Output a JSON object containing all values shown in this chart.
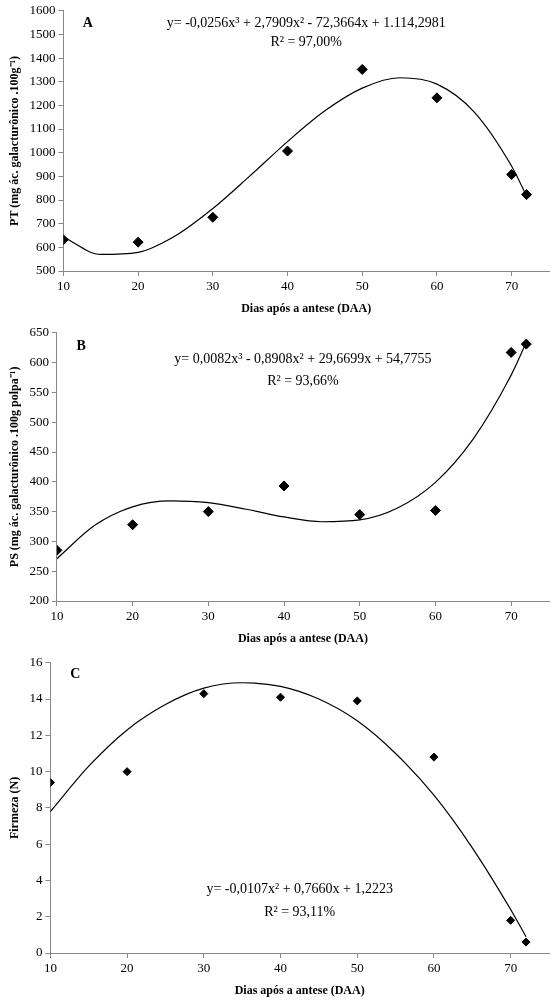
{
  "chart_data": [
    {
      "type": "scatter",
      "xlabel": "Dias após a antese (DAA)",
      "ylabel": "PT (mg ác. galacturônico .100g⁻¹)",
      "annotations": [
        "A",
        "y= -0,0256x³ + 2,7909x² - 72,3664x + 1.114,2981",
        "R² = 97,00%"
      ],
      "x": [
        10,
        20,
        30,
        40,
        50,
        60,
        70,
        72
      ],
      "xlim": [
        10,
        75
      ],
      "xticks": [
        10,
        20,
        30,
        40,
        50,
        60,
        70
      ],
      "ylim": [
        500,
        1600
      ],
      "yticks": [
        500,
        600,
        700,
        800,
        900,
        1000,
        1100,
        1200,
        1300,
        1400,
        1500,
        1600
      ],
      "legend": false,
      "series": [
        {
          "type": "scatter",
          "marker": "diamond",
          "color": "#000000",
          "values": [
            632,
            622,
            727,
            1007,
            1352,
            1232,
            908,
            823
          ]
        },
        {
          "type": "line",
          "marker": "none",
          "color": "#000000",
          "x": [
            10,
            15,
            20,
            25,
            30,
            35,
            40,
            45,
            50,
            55,
            60,
            65,
            70,
            72
          ],
          "values": [
            644,
            570,
            579,
            649,
            764,
            903,
            1047,
            1177,
            1273,
            1317,
            1290,
            1172,
            943,
            817
          ]
        }
      ]
    },
    {
      "type": "scatter",
      "xlabel": "Dias após a antese (DAA)",
      "ylabel": "PS (mg ác. galacturônico .100g polpa⁻¹)",
      "annotations": [
        "B",
        "y= 0,0082x³ - 0,8908x² + 29,6699x + 54,7755",
        "R² = 93,66%"
      ],
      "x": [
        10,
        20,
        30,
        40,
        50,
        60,
        70,
        72
      ],
      "xlim": [
        10,
        75
      ],
      "xticks": [
        10,
        20,
        30,
        40,
        50,
        60,
        70
      ],
      "ylim": [
        200,
        650
      ],
      "yticks": [
        200,
        250,
        300,
        350,
        400,
        450,
        500,
        550,
        600,
        650
      ],
      "legend": false,
      "series": [
        {
          "type": "scatter",
          "marker": "diamond",
          "color": "#000000",
          "values": [
            285,
            328,
            350,
            393,
            345,
            352,
            617,
            631
          ]
        },
        {
          "type": "line",
          "marker": "none",
          "color": "#000000",
          "x": [
            10,
            15,
            20,
            25,
            30,
            35,
            40,
            45,
            50,
            55,
            60,
            65,
            70,
            72
          ],
          "values": [
            271,
            327,
            358,
            368,
            365,
            354,
            341,
            333,
            336,
            356,
            399,
            472,
            579,
            634
          ]
        }
      ]
    },
    {
      "type": "scatter",
      "xlabel": "Dias após a antese (DAA)",
      "ylabel": "Firmeza (N)",
      "annotations": [
        "C",
        "y= -0,0107x² + 0,7660x + 1,2223",
        "R² = 93,11%"
      ],
      "x": [
        10,
        20,
        30,
        40,
        50,
        60,
        70,
        72
      ],
      "xlim": [
        10,
        75
      ],
      "xticks": [
        10,
        20,
        30,
        40,
        50,
        60,
        70
      ],
      "ylim": [
        0,
        16
      ],
      "yticks": [
        0,
        2,
        4,
        6,
        8,
        10,
        12,
        14,
        16
      ],
      "legend": false,
      "series": [
        {
          "type": "scatter",
          "marker": "diamond",
          "color": "#000000",
          "values": [
            9.4,
            10,
            14.3,
            14.1,
            13.9,
            10.8,
            1.8,
            0.6
          ]
        },
        {
          "type": "line",
          "marker": "none",
          "color": "#000000",
          "x": [
            10,
            15,
            20,
            25,
            30,
            35,
            40,
            45,
            50,
            55,
            60,
            65,
            70,
            72
          ],
          "values": [
            7.8,
            10.3,
            12.3,
            13.7,
            14.6,
            14.9,
            14.7,
            14.0,
            12.8,
            11.0,
            8.7,
            5.8,
            2.4,
            0.9
          ]
        }
      ]
    }
  ]
}
